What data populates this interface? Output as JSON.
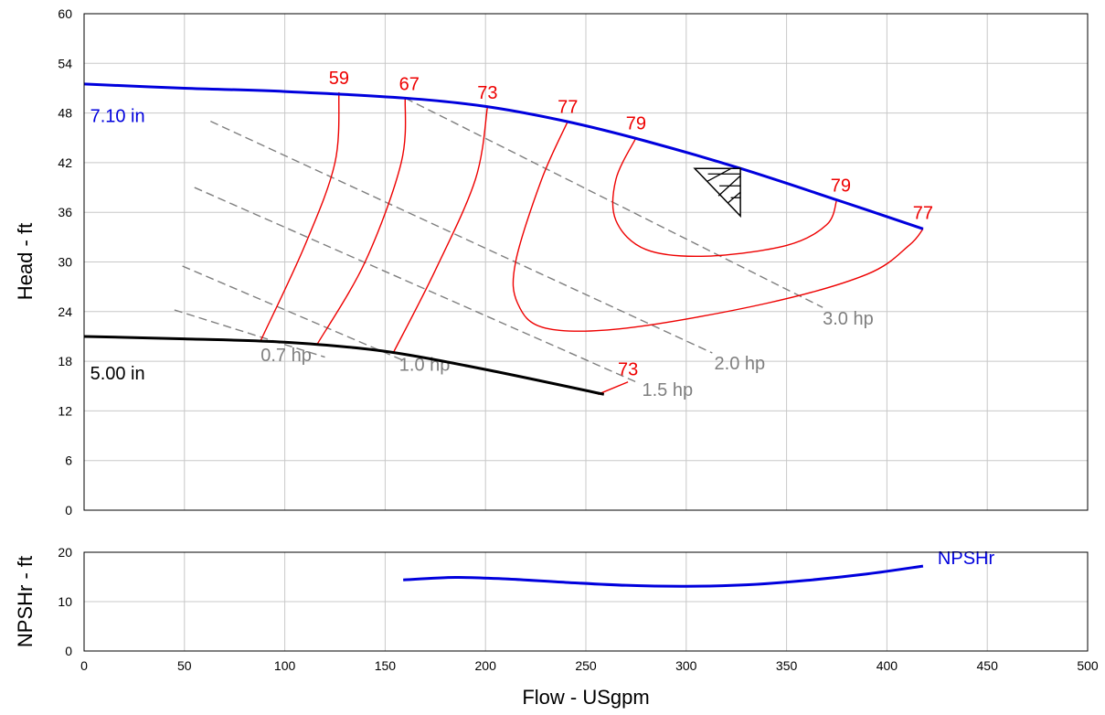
{
  "chart_data": [
    {
      "type": "line",
      "ylabel": "Head - ft",
      "xlim": [
        0,
        500
      ],
      "ylim": [
        0,
        60
      ],
      "yticks": [
        0,
        6,
        12,
        18,
        24,
        30,
        36,
        42,
        48,
        54,
        60
      ],
      "grid": true,
      "colors": {
        "impeller_max": "#0000dd",
        "impeller_min": "#000000",
        "efficiency": "#ee0000",
        "power": "#7f7f7f"
      },
      "impeller_curves": [
        {
          "label": "7.10 in",
          "color": "#0000dd",
          "points": [
            [
              0,
              51.5
            ],
            [
              50,
              51
            ],
            [
              100,
              50.6
            ],
            [
              160,
              49.8
            ],
            [
              200,
              48.8
            ],
            [
              240,
              47
            ],
            [
              280,
              44.6
            ],
            [
              327,
              41.3
            ],
            [
              375,
              37.5
            ],
            [
              418,
              34
            ]
          ]
        },
        {
          "label": "5.00 in",
          "color": "#000000",
          "points": [
            [
              0,
              21
            ],
            [
              50,
              20.7
            ],
            [
              100,
              20.3
            ],
            [
              150,
              19.2
            ],
            [
              200,
              17
            ],
            [
              259,
              14
            ]
          ]
        }
      ],
      "efficiency_curves": [
        {
          "label": "59",
          "points": [
            [
              88,
              20.5
            ],
            [
              110,
              32
            ],
            [
              125,
              42
            ],
            [
              127,
              50.5
            ]
          ]
        },
        {
          "label": "67",
          "points": [
            [
              116,
              20
            ],
            [
              140,
              30
            ],
            [
              158,
              42
            ],
            [
              160,
              49.8
            ]
          ]
        },
        {
          "label": "73",
          "points": [
            [
              154,
              19
            ],
            [
              175,
              29
            ],
            [
              195,
              40
            ],
            [
              201,
              48.8
            ]
          ]
        },
        {
          "label": "77",
          "points": [
            [
              241,
              47
            ],
            [
              228,
              40
            ],
            [
              215,
              30
            ],
            [
              216,
              25
            ],
            [
              230,
              22
            ],
            [
              270,
              22
            ],
            [
              340,
              25
            ],
            [
              390,
              28.5
            ],
            [
              411,
              32
            ],
            [
              418,
              34
            ]
          ]
        },
        {
          "label": "79",
          "points": [
            [
              275,
              45
            ],
            [
              265,
              40
            ],
            [
              265,
              35
            ],
            [
              280,
              31.5
            ],
            [
              310,
              30.7
            ],
            [
              350,
              32
            ],
            [
              370,
              34.5
            ],
            [
              375,
              37.5
            ]
          ]
        },
        {
          "label": "73",
          "points": [
            [
              256,
              14
            ],
            [
              271,
              15.5
            ]
          ]
        }
      ],
      "efficiency_labels": [
        {
          "text": "59",
          "x": 127,
          "y": 51.5
        },
        {
          "text": "67",
          "x": 162,
          "y": 50.8
        },
        {
          "text": "73",
          "x": 201,
          "y": 49.7
        },
        {
          "text": "77",
          "x": 241,
          "y": 48
        },
        {
          "text": "79",
          "x": 275,
          "y": 46
        },
        {
          "text": "79",
          "x": 377,
          "y": 38.5
        },
        {
          "text": "77",
          "x": 418,
          "y": 35.2
        },
        {
          "text": "73",
          "x": 271,
          "y": 16.3
        }
      ],
      "power_lines": [
        {
          "label": "0.7 hp",
          "points": [
            [
              45,
              24.2
            ],
            [
              120,
              18.5
            ]
          ],
          "label_at": [
            88,
            18.8
          ]
        },
        {
          "label": "1.0 hp",
          "points": [
            [
              49,
              29.5
            ],
            [
              160,
              18
            ]
          ],
          "label_at": [
            157,
            17.6
          ]
        },
        {
          "label": "1.5 hp",
          "points": [
            [
              55,
              39
            ],
            [
              275,
              15.5
            ]
          ],
          "label_at": [
            278,
            14.6
          ]
        },
        {
          "label": "2.0 hp",
          "points": [
            [
              63,
              47
            ],
            [
              313,
              19
            ]
          ],
          "label_at": [
            314,
            17.8
          ]
        },
        {
          "label": "3.0 hp",
          "points": [
            [
              160,
              49.8
            ],
            [
              368,
              24.5
            ]
          ],
          "label_at": [
            368,
            23.2
          ]
        }
      ],
      "operating_point": {
        "x": 327,
        "y": 41.3
      },
      "diameter_labels": [
        {
          "text": "7.10 in",
          "x": 3,
          "y": 46.9,
          "color": "#0000dd"
        },
        {
          "text": "5.00 in",
          "x": 3,
          "y": 15.8,
          "color": "#000000"
        }
      ]
    },
    {
      "type": "line",
      "xlabel": "Flow - USgpm",
      "ylabel": "NPSHr - ft",
      "xlim": [
        0,
        500
      ],
      "ylim": [
        0,
        20
      ],
      "xticks": [
        0,
        50,
        100,
        150,
        200,
        250,
        300,
        350,
        400,
        450,
        500
      ],
      "yticks": [
        0,
        10,
        20
      ],
      "grid": true,
      "series": [
        {
          "name": "NPSHr",
          "color": "#0000dd",
          "points": [
            [
              159,
              14.4
            ],
            [
              185,
              14.9
            ],
            [
              210,
              14.6
            ],
            [
              240,
              13.9
            ],
            [
              270,
              13.3
            ],
            [
              300,
              13.1
            ],
            [
              330,
              13.4
            ],
            [
              360,
              14.3
            ],
            [
              390,
              15.6
            ],
            [
              418,
              17.2
            ]
          ]
        }
      ]
    }
  ]
}
